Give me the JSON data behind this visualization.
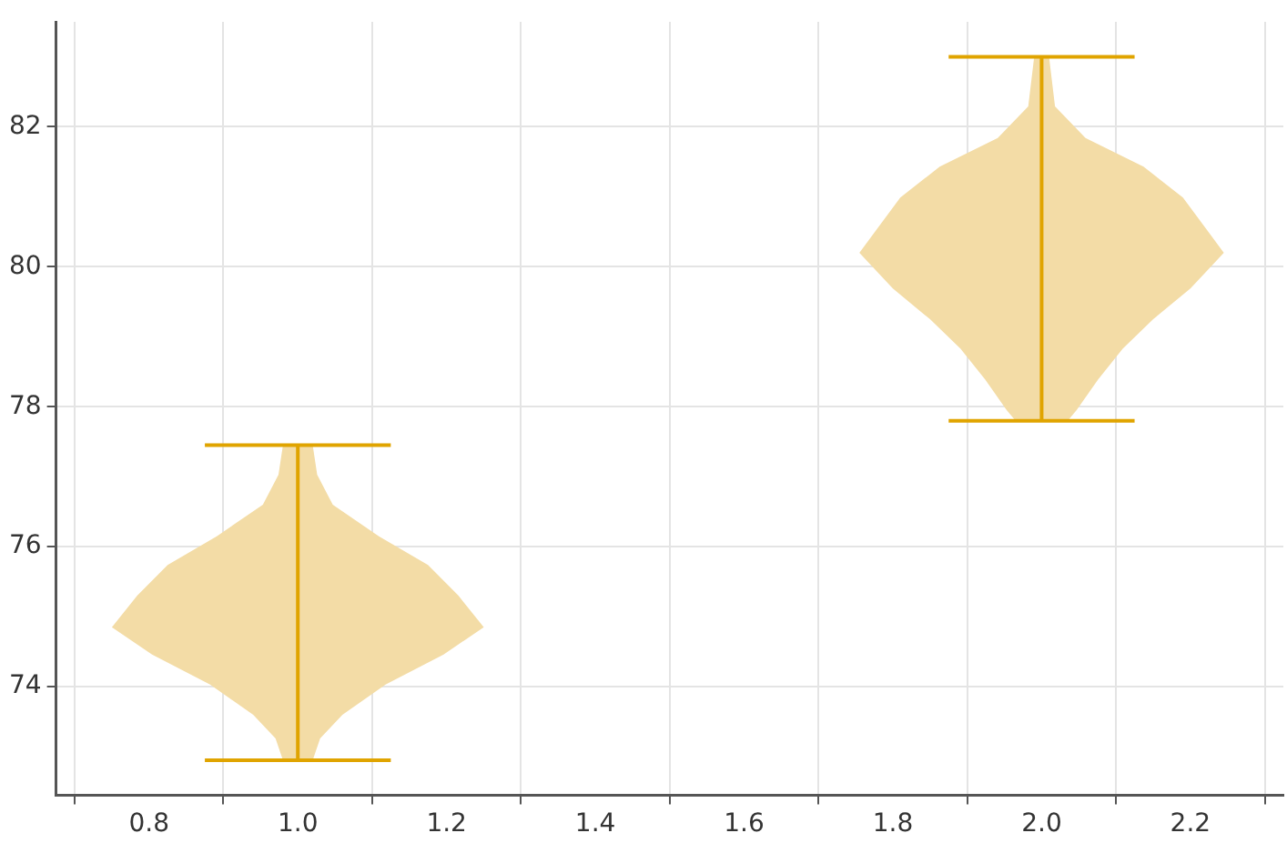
{
  "chart_data": {
    "type": "area",
    "grid": true,
    "legend": false,
    "xlim": [
      0.675,
      2.325
    ],
    "ylim": [
      72.45,
      83.5
    ],
    "xticks": [
      0.8,
      {
        "value": 1,
        "label": "1.0"
      },
      1.2,
      1.4,
      1.6,
      1.8,
      {
        "value": 2,
        "label": "2.0"
      },
      2.2
    ],
    "yticks": [
      74,
      76,
      78,
      80,
      82
    ],
    "series": [
      {
        "color": "#f3dca6",
        "x": [
          1.02,
          1.026,
          1.047,
          1.109,
          1.175,
          1.216,
          1.25,
          1.196,
          1.118,
          1.06,
          1.03,
          1.02,
          0.98,
          0.97,
          0.94,
          0.882,
          0.804,
          0.75,
          0.784,
          0.825,
          0.891,
          0.953,
          0.974,
          0.98
        ],
        "values": [
          77.45,
          77.03,
          76.6,
          76.15,
          75.74,
          75.3,
          74.85,
          74.46,
          74.03,
          73.6,
          73.26,
          72.95,
          72.95,
          73.26,
          73.6,
          74.03,
          74.46,
          74.85,
          75.3,
          75.74,
          76.15,
          76.6,
          77.03,
          77.45
        ]
      },
      {
        "color": "#f3dca6",
        "x": [
          2.01,
          2.018,
          2.059,
          2.137,
          2.19,
          2.245,
          2.2,
          2.15,
          2.109,
          2.076,
          2.047,
          2.035,
          1.965,
          1.953,
          1.924,
          1.891,
          1.85,
          1.8,
          1.755,
          1.81,
          1.863,
          1.941,
          1.982,
          1.99
        ],
        "values": [
          83.0,
          82.29,
          81.84,
          81.43,
          80.99,
          80.2,
          79.69,
          79.25,
          78.83,
          78.39,
          77.95,
          77.8,
          77.8,
          77.95,
          78.39,
          78.83,
          79.25,
          79.69,
          80.2,
          80.99,
          81.43,
          81.84,
          82.29,
          83.0
        ]
      },
      {
        "type": "line",
        "color": "#e0a400",
        "x": [
          1,
          1
        ],
        "values": [
          72.95,
          77.45
        ]
      },
      {
        "type": "line",
        "color": "#e0a400",
        "x": [
          0.875,
          1.125
        ],
        "values": [
          77.45,
          77.45
        ]
      },
      {
        "type": "line",
        "color": "#e0a400",
        "x": [
          0.875,
          1.125
        ],
        "values": [
          72.95,
          72.95
        ]
      },
      {
        "type": "line",
        "color": "#e0a400",
        "x": [
          2,
          2
        ],
        "values": [
          77.8,
          83.0
        ]
      },
      {
        "type": "line",
        "color": "#e0a400",
        "x": [
          1.875,
          2.125
        ],
        "values": [
          83.0,
          83.0
        ]
      },
      {
        "type": "line",
        "color": "#e0a400",
        "x": [
          1.875,
          2.125
        ],
        "values": [
          77.8,
          77.8
        ]
      }
    ]
  }
}
